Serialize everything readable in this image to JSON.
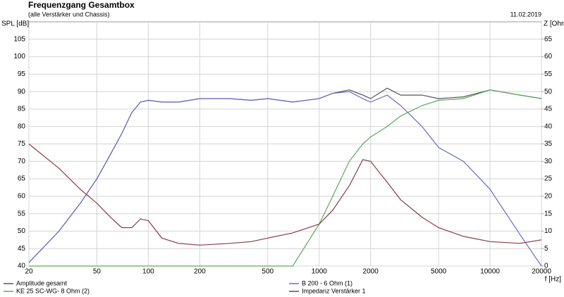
{
  "chart_data": {
    "type": "line",
    "title": "Frequenzgang Gesamtbox",
    "subtitle": "(alle Verstärker und Chassis)",
    "date": "11.02.2019",
    "y_label": "SPL [dB]",
    "y2_label": "Z [Ohm",
    "x_label": "f [Hz]",
    "log_x": true,
    "grid": true,
    "x": [
      20,
      30,
      40,
      50,
      60,
      70,
      80,
      90,
      100,
      120,
      150,
      200,
      300,
      400,
      500,
      700,
      1000,
      1200,
      1500,
      1800,
      2000,
      2500,
      3000,
      4000,
      5000,
      7000,
      10000,
      15000,
      20000
    ],
    "xlim": [
      20,
      20000
    ],
    "xticks": [
      20,
      50,
      100,
      200,
      500,
      1000,
      2000,
      5000,
      10000,
      20000
    ],
    "ylim": [
      40,
      110
    ],
    "yticks": [
      40,
      45,
      50,
      55,
      60,
      65,
      70,
      75,
      80,
      85,
      90,
      95,
      100,
      105
    ],
    "y2lim": [
      0,
      70
    ],
    "y2ticks": [
      0,
      5,
      10,
      15,
      20,
      25,
      30,
      35,
      40,
      45,
      50,
      55,
      60,
      65
    ],
    "series": [
      {
        "name": "Amplitude gesamt",
        "color": "#555555",
        "values": [
          41,
          50,
          58,
          65,
          72,
          78,
          84,
          87,
          87.5,
          87,
          87,
          88,
          88,
          87.5,
          88,
          87,
          88,
          89.5,
          90.5,
          89,
          88,
          91,
          89,
          89,
          88,
          88.5,
          90.5,
          89,
          88
        ]
      },
      {
        "name": "B 200 - 6 Ohm (1)",
        "color": "#6a6acb",
        "values": [
          41,
          50,
          58,
          65,
          72,
          78,
          84,
          87,
          87.5,
          87,
          87,
          88,
          88,
          87.5,
          88,
          87,
          88,
          89.5,
          90,
          88,
          87,
          89,
          86,
          80,
          74,
          70,
          62,
          49,
          40
        ]
      },
      {
        "name": "KE 25 SC-WG- 8 Ohm    (2)",
        "color": "#5aaa5a",
        "values": [
          40,
          40,
          40,
          40,
          40,
          40,
          40,
          40,
          40,
          40,
          40,
          40,
          40,
          40,
          40,
          40,
          52,
          60,
          70,
          75,
          77,
          80,
          83,
          86,
          87.5,
          88,
          90.5,
          89,
          88
        ]
      },
      {
        "name": "Impedanz Verstärker 1",
        "color": "#8a3a4a",
        "axis": "y2",
        "values": [
          35,
          28,
          22,
          18,
          14,
          11,
          11,
          13.5,
          13,
          8,
          6.5,
          6,
          6.5,
          7,
          8,
          9.5,
          12,
          16,
          23,
          30.5,
          30,
          24,
          19,
          14,
          11,
          8.5,
          7,
          6.5,
          7.5
        ]
      }
    ]
  }
}
